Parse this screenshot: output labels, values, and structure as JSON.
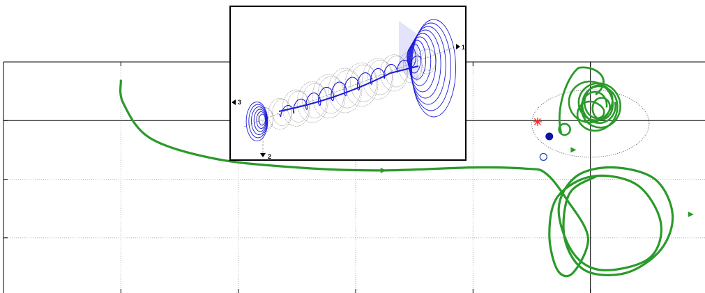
{
  "chart_data": {
    "type": "line",
    "title": "",
    "xlabel": "",
    "ylabel": "",
    "grid": true,
    "xlim": [
      0,
      6
    ],
    "ylim": [
      -3,
      1
    ],
    "reference_lines": {
      "vertical_x": 5,
      "horizontal_y": 0
    },
    "series": [
      {
        "kind": "main-trajectory",
        "x": [
          1.0,
          1.02,
          1.25,
          1.8,
          2.5,
          3.2,
          4.0,
          4.45,
          4.62,
          4.8,
          4.98,
          4.85,
          4.72,
          4.65,
          4.72,
          5.02,
          5.4,
          5.6,
          5.5,
          5.1,
          4.85,
          4.73,
          4.88,
          5.2,
          5.55,
          5.7,
          5.6,
          5.3,
          4.95,
          4.78,
          4.82,
          5.05
        ],
        "y": [
          0.68,
          0.3,
          -0.3,
          -0.65,
          -0.8,
          -0.85,
          -0.8,
          -0.82,
          -0.9,
          -1.35,
          -2.0,
          -2.6,
          -2.55,
          -1.95,
          -1.3,
          -0.95,
          -1.1,
          -1.75,
          -2.35,
          -2.55,
          -2.25,
          -1.5,
          -0.95,
          -0.8,
          -1.0,
          -1.6,
          -2.2,
          -2.6,
          -2.55,
          -2.0,
          -1.25,
          -0.95
        ]
      }
    ],
    "loop_cluster_center": [
      5.05,
      0.25
    ],
    "small_loop_center": [
      4.78,
      -0.15
    ],
    "dotted_circle": {
      "cx": 5.0,
      "cy": -0.05,
      "r": 0.5
    },
    "markers": [
      {
        "kind": "filled-dot",
        "x": 4.65,
        "y": -0.27,
        "color": "#1010aa"
      },
      {
        "kind": "open-circle",
        "x": 4.6,
        "y": -0.62,
        "color": "#1f4fa8"
      },
      {
        "kind": "star",
        "x": 4.55,
        "y": -0.02,
        "color": "#ff2020"
      }
    ],
    "colors": {
      "trajectory": "#2a9a2a",
      "axes": "#000000",
      "grid": "#b4b4b4",
      "inset_curve": "#1a1adb",
      "inset_rings": "#9a9a9a"
    },
    "arrow_marks": [
      {
        "x": 3.23,
        "y": -0.85
      },
      {
        "x": 4.85,
        "y": -0.5
      },
      {
        "x": 5.85,
        "y": -1.6
      }
    ],
    "inset": {
      "type": "3d-trajectory",
      "axis_labels": [
        "1",
        "2",
        "3"
      ]
    }
  }
}
